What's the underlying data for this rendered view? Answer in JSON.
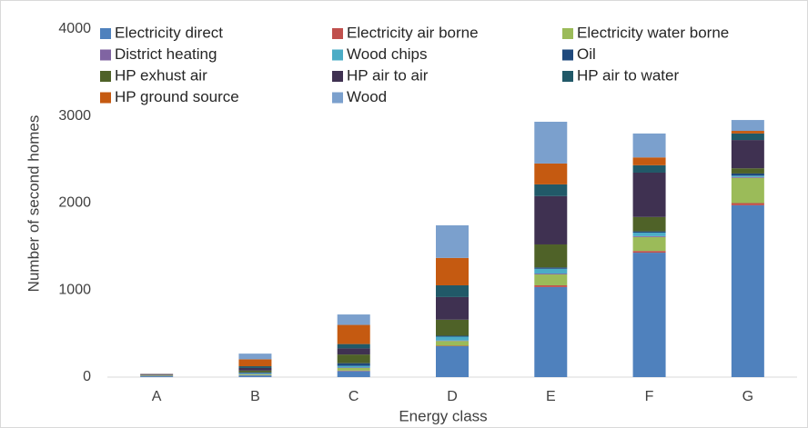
{
  "chart_data": {
    "type": "stacked_bar",
    "x_label": "Energy class",
    "y_label": "Number of second homes",
    "categories": [
      "A",
      "B",
      "C",
      "D",
      "E",
      "F",
      "G"
    ],
    "ylim": [
      0,
      4000
    ],
    "yticks": [
      0,
      1000,
      2000,
      3000,
      4000
    ],
    "grid": false,
    "series": [
      {
        "name": "Electricity direct",
        "color": "#4f81bd",
        "values": [
          10,
          20,
          70,
          355,
          1035,
          1430,
          1975
        ]
      },
      {
        "name": "Electricity air borne",
        "color": "#c0504d",
        "values": [
          2,
          3,
          5,
          5,
          20,
          20,
          25
        ]
      },
      {
        "name": "Electricity water borne",
        "color": "#9bbb59",
        "values": [
          3,
          10,
          30,
          55,
          125,
          160,
          290
        ]
      },
      {
        "name": "District heating",
        "color": "#8064a2",
        "values": [
          0,
          2,
          5,
          5,
          10,
          10,
          10
        ]
      },
      {
        "name": "Wood chips",
        "color": "#4bacc6",
        "values": [
          2,
          10,
          20,
          45,
          55,
          40,
          15
        ]
      },
      {
        "name": "Oil",
        "color": "#1f497d",
        "values": [
          2,
          10,
          30,
          10,
          15,
          15,
          25
        ]
      },
      {
        "name": "HP exhust air",
        "color": "#4f6228",
        "values": [
          3,
          20,
          100,
          185,
          265,
          165,
          60
        ]
      },
      {
        "name": "HP air to air",
        "color": "#3f3151",
        "values": [
          5,
          30,
          70,
          260,
          555,
          510,
          325
        ]
      },
      {
        "name": "HP air to water",
        "color": "#215968",
        "values": [
          3,
          20,
          50,
          135,
          135,
          85,
          75
        ]
      },
      {
        "name": "HP ground source",
        "color": "#c55a11",
        "values": [
          5,
          80,
          220,
          315,
          240,
          90,
          30
        ]
      },
      {
        "name": "Wood",
        "color": "#7ba0cd",
        "values": [
          5,
          65,
          120,
          375,
          480,
          275,
          125
        ]
      }
    ]
  }
}
